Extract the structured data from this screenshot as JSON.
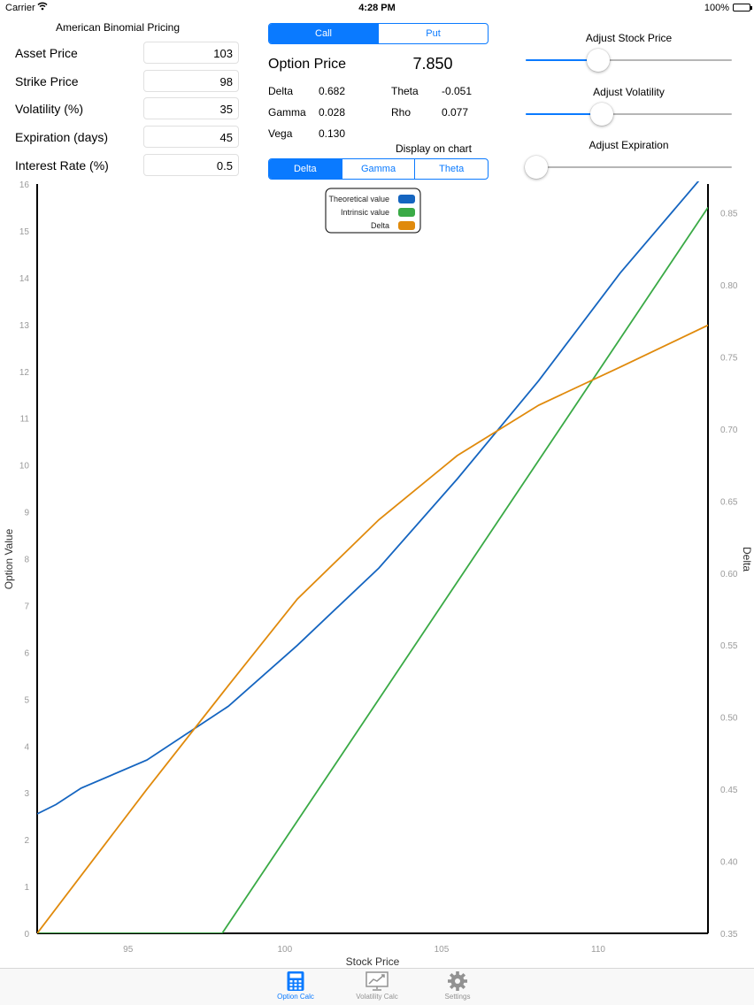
{
  "status_bar": {
    "carrier": "Carrier",
    "time": "4:28 PM",
    "battery": "100%"
  },
  "form": {
    "title": "American Binomial Pricing",
    "rows": [
      {
        "label": "Asset Price",
        "value": "103"
      },
      {
        "label": "Strike Price",
        "value": "98"
      },
      {
        "label": "Volatility (%)",
        "value": "35"
      },
      {
        "label": "Expiration (days)",
        "value": "45"
      },
      {
        "label": "Interest Rate (%)",
        "value": "0.5"
      }
    ]
  },
  "option_type": {
    "options": [
      "Call",
      "Put"
    ],
    "selected": "Call"
  },
  "results": {
    "option_price_label": "Option Price",
    "option_price_value": "7.850",
    "greeks": [
      {
        "label": "Delta",
        "value": "0.682"
      },
      {
        "label": "Gamma",
        "value": "0.028"
      },
      {
        "label": "Vega",
        "value": "0.130"
      },
      {
        "label": "Theta",
        "value": "-0.051"
      },
      {
        "label": "Rho",
        "value": "0.077"
      }
    ]
  },
  "display_on_chart": {
    "label": "Display on chart",
    "options": [
      "Delta",
      "Gamma",
      "Theta"
    ],
    "selected": "Delta"
  },
  "sliders": [
    {
      "label": "Adjust Stock Price",
      "position": 0.35
    },
    {
      "label": "Adjust Volatility",
      "position": 0.37
    },
    {
      "label": "Adjust Expiration",
      "position": 0.05
    }
  ],
  "tabs": [
    {
      "label": "Option Calc",
      "icon": "calculator-icon",
      "selected": true
    },
    {
      "label": "Volatility Calc",
      "icon": "chart-monitor-icon",
      "selected": false
    },
    {
      "label": "Settings",
      "icon": "gear-icon",
      "selected": false
    }
  ],
  "colors": {
    "accent": "#0a7aff",
    "theoretical": "#1565c0",
    "intrinsic": "#3aaa46",
    "delta": "#e08a0c"
  },
  "chart_data": {
    "type": "line",
    "xlabel": "Stock Price",
    "ylabel": "Option Value",
    "y2label": "Delta",
    "xlim": [
      92.1,
      113.5
    ],
    "ylim": [
      0,
      16
    ],
    "y2lim": [
      0.35,
      0.87
    ],
    "x_ticks": [
      95,
      100,
      105,
      110
    ],
    "y_ticks": [
      0,
      1,
      2,
      3,
      4,
      5,
      6,
      7,
      8,
      9,
      10,
      11,
      12,
      13,
      14,
      15,
      16
    ],
    "y2_ticks": [
      "0.35",
      "0.40",
      "0.45",
      "0.50",
      "0.55",
      "0.60",
      "0.65",
      "0.70",
      "0.75",
      "0.80",
      "0.85"
    ],
    "legend": {
      "placement": "top-center",
      "entries": [
        "Theoretical value",
        "Intrinsic value",
        "Delta"
      ]
    },
    "grid": false,
    "series": [
      {
        "name": "Theoretical value",
        "axis": "left",
        "x": [
          92.1,
          92.7,
          93.5,
          95.6,
          98.2,
          100.4,
          103.0,
          105.5,
          108.1,
          110.7,
          113.5
        ],
        "y": [
          2.55,
          2.75,
          3.1,
          3.7,
          4.85,
          6.15,
          7.8,
          9.7,
          11.8,
          14.1,
          16.3
        ]
      },
      {
        "name": "Intrinsic value",
        "axis": "left",
        "x": [
          92.1,
          98.0,
          113.5
        ],
        "y": [
          0,
          0,
          15.5
        ]
      },
      {
        "name": "Delta",
        "axis": "right",
        "x": [
          92.1,
          93.5,
          95.6,
          98.2,
          100.4,
          103.0,
          105.5,
          108.1,
          110.7,
          113.5
        ],
        "y": [
          0.35,
          0.39,
          0.45,
          0.522,
          0.582,
          0.637,
          0.6815,
          0.7165,
          0.743,
          0.772
        ]
      }
    ]
  }
}
